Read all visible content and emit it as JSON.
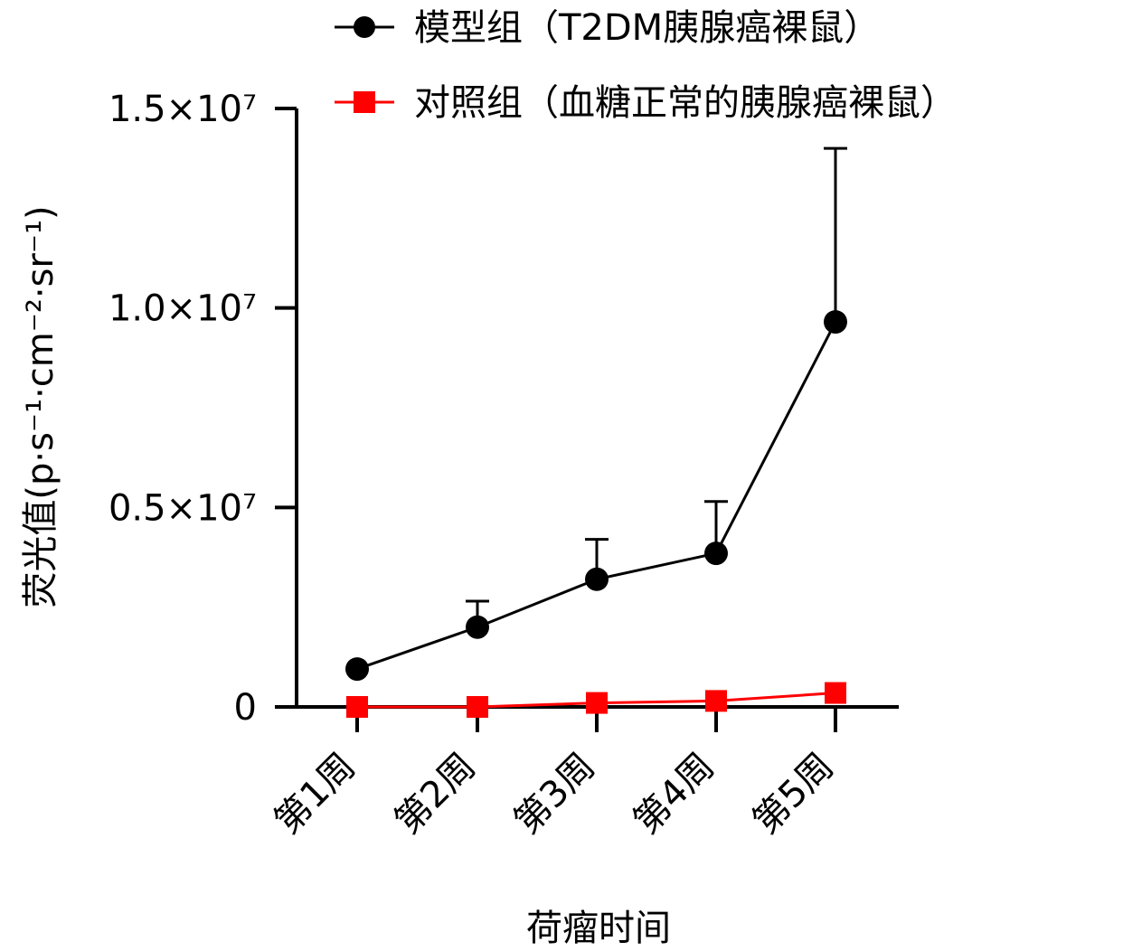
{
  "chart_data": {
    "type": "line",
    "title": "",
    "xlabel": "荷瘤时间",
    "ylabel": "荧光值(p·s⁻¹·cm⁻²·sr⁻¹)",
    "categories": [
      "第1周",
      "第2周",
      "第3周",
      "第4周",
      "第5周"
    ],
    "yticks": [
      "0",
      "0.5×10⁷",
      "1.0×10⁷",
      "1.5×10⁷"
    ],
    "ylim": [
      0,
      15000000
    ],
    "grid": false,
    "legend_position": "top",
    "series": [
      {
        "name": "模型组（T2DM胰腺癌裸鼠）",
        "color": "#000000",
        "marker": "circle",
        "values": [
          950000,
          2000000,
          3200000,
          3850000,
          9650000
        ],
        "error_upper": [
          950000,
          2650000,
          4200000,
          5150000,
          14000000
        ]
      },
      {
        "name": "对照组（血糖正常的胰腺癌裸鼠）",
        "color": "#ff0000",
        "marker": "square",
        "values": [
          0,
          0,
          100000,
          150000,
          350000
        ],
        "error_upper": [
          0,
          0,
          100000,
          150000,
          350000
        ]
      }
    ]
  }
}
